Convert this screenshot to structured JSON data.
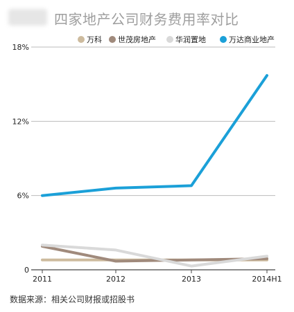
{
  "title": "四家地产公司财务费用率对比",
  "source": "数据来源：相关公司财报或招股书",
  "chart_data": {
    "type": "line",
    "title": "四家地产公司财务费用率对比",
    "categories": [
      "2011",
      "2012",
      "2013",
      "2014H1"
    ],
    "y_ticks": [
      "18%",
      "12%",
      "6%",
      "0"
    ],
    "ylim": [
      0,
      18
    ],
    "grid": true,
    "legend_position": "top-right",
    "series": [
      {
        "name": "万科",
        "color": "#cdbb9e",
        "values": [
          0.8,
          0.8,
          0.8,
          0.8
        ]
      },
      {
        "name": "世茂房地产",
        "color": "#a08a7c",
        "values": [
          1.9,
          0.7,
          0.8,
          0.9
        ]
      },
      {
        "name": "华润置地",
        "color": "#d9d9d9",
        "values": [
          2.0,
          1.6,
          0.3,
          1.1
        ]
      },
      {
        "name": "万达商业地产",
        "color": "#1ba0d8",
        "values": [
          6.0,
          6.6,
          6.8,
          15.7
        ]
      }
    ]
  }
}
